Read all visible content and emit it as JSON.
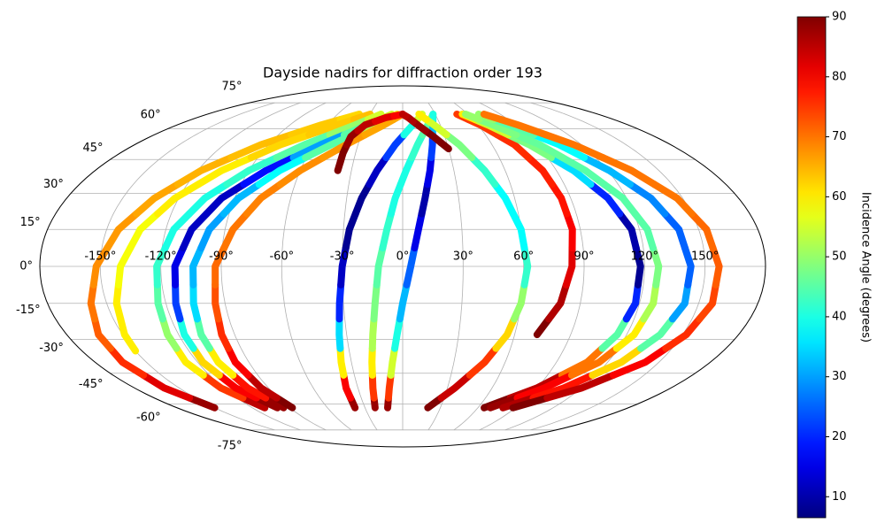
{
  "chart_data": {
    "type": "scatter",
    "projection": "mollweide",
    "title": "Dayside nadirs for diffraction order 193",
    "colorbar_label": "Incidence Angle (degrees)",
    "colormap": "jet",
    "clim": [
      6.5,
      90
    ],
    "cticks": [
      10,
      20,
      30,
      40,
      50,
      60,
      70,
      80,
      90
    ],
    "grid": true,
    "xlim": [
      -180,
      180
    ],
    "ylim": [
      -90,
      90
    ],
    "xticks": [
      {
        "value": -150,
        "label": "-150°"
      },
      {
        "value": -120,
        "label": "-120°"
      },
      {
        "value": -90,
        "label": "-90°"
      },
      {
        "value": -60,
        "label": "-60°"
      },
      {
        "value": -30,
        "label": "-30°"
      },
      {
        "value": 0,
        "label": "0°"
      },
      {
        "value": 30,
        "label": "30°"
      },
      {
        "value": 60,
        "label": "60°"
      },
      {
        "value": 90,
        "label": "90°"
      },
      {
        "value": 120,
        "label": "120°"
      },
      {
        "value": 150,
        "label": "150°"
      }
    ],
    "yticks": [
      {
        "value": -75,
        "label": "-75°"
      },
      {
        "value": -60,
        "label": "-60°"
      },
      {
        "value": -45,
        "label": "-45°"
      },
      {
        "value": -30,
        "label": "-30°"
      },
      {
        "value": -15,
        "label": "-15°"
      },
      {
        "value": 0,
        "label": "0°"
      },
      {
        "value": 15,
        "label": "15°"
      },
      {
        "value": 30,
        "label": "30°"
      },
      {
        "value": 45,
        "label": "45°"
      },
      {
        "value": 60,
        "label": "60°"
      },
      {
        "value": 75,
        "label": "75°"
      }
    ],
    "tracks": [
      {
        "lat": [
          -62,
          -52,
          -40,
          -28,
          -15,
          0,
          15,
          28,
          40,
          52,
          62,
          68
        ],
        "lon": [
          -150,
          -160,
          -164,
          -163,
          -158,
          -152,
          -144,
          -133,
          -118,
          -95,
          -65,
          -40
        ],
        "incidence": [
          88,
          82,
          76,
          72,
          70,
          68,
          67,
          66,
          65,
          64,
          63,
          62
        ]
      },
      {
        "lat": [
          -35,
          -28,
          -15,
          0,
          15,
          28,
          40,
          52,
          62,
          68
        ],
        "lon": [
          -150,
          -149,
          -145,
          -140,
          -133,
          -122,
          -106,
          -82,
          -52,
          -30
        ],
        "incidence": [
          60,
          60,
          60,
          58,
          58,
          60,
          60,
          62,
          63,
          64
        ]
      },
      {
        "lat": [
          -62,
          -52,
          -40,
          -28,
          -15,
          0,
          15,
          28,
          40,
          52,
          62,
          68
        ],
        "lon": [
          -110,
          -122,
          -127,
          -126,
          -124,
          -122,
          -116,
          -106,
          -90,
          -66,
          -38,
          -20
        ],
        "incidence": [
          85,
          75,
          60,
          50,
          45,
          42,
          40,
          40,
          42,
          45,
          50,
          55
        ]
      },
      {
        "lat": [
          -62,
          -52,
          -40,
          -28,
          -15,
          0,
          15,
          28,
          40,
          52,
          62,
          68
        ],
        "lon": [
          -100,
          -112,
          -117,
          -117,
          -115,
          -113,
          -107,
          -97,
          -80,
          -55,
          -28,
          -10
        ],
        "incidence": [
          88,
          80,
          62,
          40,
          22,
          15,
          12,
          12,
          18,
          30,
          45,
          55
        ]
      },
      {
        "lat": [
          -62,
          -52,
          -40,
          -28,
          -15,
          0,
          15,
          28,
          40,
          52,
          62,
          68
        ],
        "lon": [
          -95,
          -104,
          -108,
          -108,
          -106,
          -104,
          -98,
          -88,
          -72,
          -48,
          -22,
          -5
        ],
        "incidence": [
          88,
          78,
          60,
          45,
          35,
          32,
          30,
          32,
          38,
          45,
          52,
          58
        ]
      },
      {
        "lat": [
          -62,
          -52,
          -40,
          -28,
          -15,
          0,
          15,
          28,
          40,
          52,
          62,
          68
        ],
        "lon": [
          -88,
          -95,
          -98,
          -97,
          -95,
          -93,
          -86,
          -76,
          -60,
          -38,
          -15,
          0
        ],
        "incidence": [
          90,
          85,
          80,
          76,
          73,
          71,
          70,
          69,
          68,
          67,
          66,
          66
        ]
      },
      {
        "lat": [
          -62,
          -52,
          -40,
          -28,
          -15,
          0,
          15,
          28,
          40,
          52,
          62,
          68
        ],
        "lon": [
          -38,
          -38,
          -36,
          -34,
          -32,
          -30,
          -27,
          -22,
          -15,
          -5,
          8,
          18
        ],
        "incidence": [
          88,
          80,
          60,
          35,
          20,
          12,
          8,
          8,
          12,
          22,
          40,
          55
        ]
      },
      {
        "lat": [
          -62,
          -52,
          -40,
          -28,
          -15,
          0,
          15,
          28,
          40,
          52,
          62,
          68
        ],
        "lon": [
          -22,
          -20,
          -18,
          -16,
          -14,
          -12,
          -8,
          -4,
          2,
          10,
          20,
          28
        ],
        "incidence": [
          88,
          75,
          60,
          52,
          48,
          45,
          42,
          40,
          40,
          42,
          45,
          50
        ]
      },
      {
        "lat": [
          -62,
          -52,
          -40,
          -28,
          -15,
          0,
          15,
          28,
          40,
          52,
          62,
          68
        ],
        "lon": [
          -12,
          -9,
          -6,
          -3,
          0,
          4,
          8,
          12,
          16,
          20,
          24,
          28
        ],
        "incidence": [
          88,
          75,
          55,
          40,
          32,
          25,
          15,
          10,
          15,
          22,
          32,
          40
        ]
      },
      {
        "lat": [
          -62,
          -52,
          -40,
          -28,
          -15,
          0,
          15,
          28,
          40,
          52,
          62,
          68
        ],
        "lon": [
          20,
          35,
          48,
          56,
          60,
          62,
          60,
          55,
          48,
          38,
          25,
          15
        ],
        "incidence": [
          90,
          84,
          75,
          62,
          50,
          42,
          38,
          38,
          42,
          48,
          55,
          60
        ]
      },
      {
        "lat": [
          -28,
          -15,
          0,
          15,
          28,
          40,
          52,
          62,
          68
        ],
        "lon": [
          72,
          80,
          84,
          86,
          85,
          82,
          75,
          62,
          50
        ],
        "incidence": [
          90,
          86,
          82,
          80,
          78,
          77,
          76,
          75,
          75
        ]
      },
      {
        "lat": [
          -62,
          -52,
          -40,
          -28,
          -15,
          0,
          15,
          28,
          40,
          52,
          62,
          68
        ],
        "lon": [
          65,
          90,
          108,
          115,
          118,
          118,
          116,
          110,
          100,
          85,
          68,
          55
        ],
        "incidence": [
          90,
          85,
          70,
          45,
          20,
          8,
          10,
          20,
          35,
          48,
          55,
          60
        ]
      },
      {
        "lat": [
          -62,
          -52,
          -40,
          -28,
          -15,
          0,
          15,
          28,
          40,
          52,
          62,
          68
        ],
        "lon": [
          70,
          95,
          115,
          124,
          127,
          127,
          124,
          118,
          107,
          92,
          72,
          58
        ],
        "incidence": [
          88,
          80,
          70,
          60,
          52,
          48,
          45,
          45,
          45,
          46,
          48,
          50
        ]
      },
      {
        "lat": [
          -62,
          -52,
          -40,
          -28,
          -15,
          0,
          15,
          28,
          40,
          52,
          62,
          68
        ],
        "lon": [
          80,
          108,
          128,
          138,
          143,
          143,
          140,
          133,
          121,
          105,
          85,
          70
        ],
        "incidence": [
          86,
          78,
          62,
          45,
          30,
          25,
          25,
          28,
          32,
          38,
          45,
          50
        ]
      },
      {
        "lat": [
          -62,
          -52,
          -40,
          -28,
          -15,
          0,
          15,
          28,
          40,
          52,
          62,
          68
        ],
        "lon": [
          88,
          120,
          142,
          152,
          157,
          157,
          154,
          147,
          134,
          115,
          92,
          75
        ],
        "incidence": [
          90,
          85,
          80,
          76,
          74,
          72,
          71,
          70,
          70,
          70,
          70,
          70
        ]
      },
      {
        "lat": [
          40,
          48,
          56,
          62,
          66,
          68
        ],
        "lon": [
          -38,
          -38,
          -37,
          -30,
          -15,
          0
        ],
        "incidence": [
          90,
          90,
          88,
          85,
          82,
          80
        ]
      },
      {
        "lat": [
          50,
          56,
          62,
          66,
          68
        ],
        "lon": [
          30,
          22,
          12,
          5,
          0
        ],
        "incidence": [
          90,
          90,
          88,
          86,
          85
        ]
      }
    ]
  }
}
